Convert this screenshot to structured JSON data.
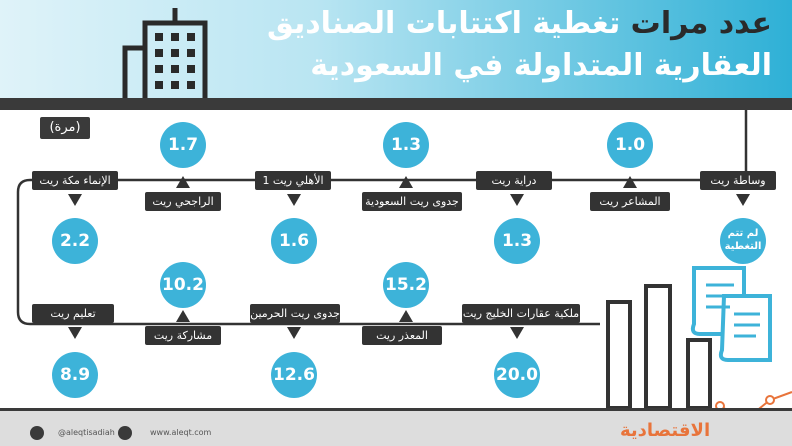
{
  "header": {
    "title_line1_part1": "عدد مرات",
    "title_line1_part2": "تغطية اكتتابات الصناديق",
    "title_line2": "العقارية المتداولة في السعودية"
  },
  "unit_label": "(مرة)",
  "chart_data": {
    "type": "bubble-timeline",
    "title": "عدد مرات تغطية اكتتابات الصناديق العقارية المتداولة في السعودية",
    "unit": "(مرة)",
    "funds": [
      {
        "name": "وساطة ريت",
        "value_label": "لم تتم التغطية"
      },
      {
        "name": "المشاعر ريت",
        "value": 1.0
      },
      {
        "name": "دراية ريت",
        "value": 1.3
      },
      {
        "name": "جدوى ريت السعودية",
        "value": 1.3
      },
      {
        "name": "الأهلي ريت 1",
        "value": 1.6
      },
      {
        "name": "الراجحي ريت",
        "value": 1.7
      },
      {
        "name": "الإنماء مكة ريت",
        "value": 2.2
      },
      {
        "name": "تعليم ريت",
        "value": 8.9
      },
      {
        "name": "مشاركة ريت",
        "value": 10.2
      },
      {
        "name": "جدوى ريت الحرمين",
        "value": 12.6
      },
      {
        "name": "المعذر ريت",
        "value": 15.2
      },
      {
        "name": "ملكية عقارات الخليج ريت",
        "value": 20.0
      }
    ],
    "colors": {
      "bubble": "#3db3d9",
      "label": "#333333",
      "accent": "#e8743b"
    }
  },
  "footer": {
    "handle": "@aleqtisadiah",
    "site": "www.aleqt.com",
    "brand": "الاقتصادية"
  }
}
